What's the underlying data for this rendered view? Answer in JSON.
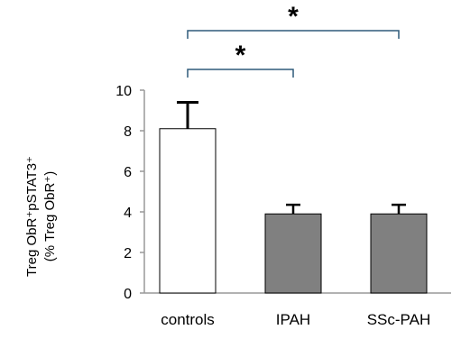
{
  "chart_data": {
    "type": "bar",
    "categories": [
      "controls",
      "IPAH",
      "SSc-PAH"
    ],
    "values": [
      8.1,
      3.9,
      3.9
    ],
    "error_upper": [
      1.3,
      0.45,
      0.45
    ],
    "bar_colors": [
      "#ffffff",
      "#808080",
      "#808080"
    ],
    "bar_edge_color": "#000000",
    "bracket_color": "#2e5a7a",
    "ylabel_line1": "Treg ObR⁺pSTAT3⁺",
    "ylabel_line2": "(% Treg ObR⁺)",
    "xlabel": "",
    "title": "",
    "ylim": [
      0,
      10
    ],
    "yticks": [
      "0",
      "2",
      "4",
      "6",
      "8",
      "10"
    ],
    "ytick_values": [
      0,
      2,
      4,
      6,
      8,
      10
    ],
    "grid": false,
    "significance": [
      {
        "from": "controls",
        "to": "IPAH",
        "label": "*"
      },
      {
        "from": "controls",
        "to": "SSc-PAH",
        "label": "*"
      }
    ]
  }
}
